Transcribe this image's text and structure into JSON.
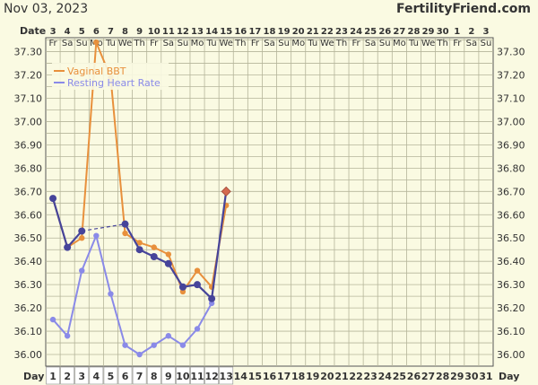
{
  "header": {
    "date": "Nov 03, 2023",
    "site": "FertilityFriend.com"
  },
  "labels": {
    "date_row": "Date",
    "day_row": "Day"
  },
  "colors": {
    "background": "#fafae2",
    "grid": "#b5b59a",
    "axis": "#555555",
    "bbt": "#e8903c",
    "rhr": "#8a8ae8",
    "combined": "#46449a",
    "flagged": "#d46a4f"
  },
  "chart_data": {
    "type": "line",
    "x_dates": [
      "3",
      "4",
      "5",
      "6",
      "7",
      "8",
      "9",
      "10",
      "11",
      "12",
      "13",
      "14",
      "15",
      "16",
      "17",
      "18",
      "19",
      "20",
      "21",
      "22",
      "23",
      "24",
      "25",
      "26",
      "27",
      "28",
      "29",
      "30",
      "1",
      "2",
      "3"
    ],
    "x_weekdays": [
      "Fr",
      "Sa",
      "Su",
      "Mo",
      "Tu",
      "We",
      "Th",
      "Fr",
      "Sa",
      "Su",
      "Mo",
      "Tu",
      "We",
      "Th",
      "Fr",
      "Sa",
      "Su",
      "Mo",
      "Tu",
      "We",
      "Th",
      "Fr",
      "Sa",
      "Su",
      "Mo",
      "Tu",
      "We",
      "Th",
      "Fr",
      "Sa",
      "Su"
    ],
    "x_days": [
      "1",
      "2",
      "3",
      "4",
      "5",
      "6",
      "7",
      "8",
      "9",
      "10",
      "11",
      "12",
      "13",
      "14",
      "15",
      "16",
      "17",
      "18",
      "19",
      "20",
      "21",
      "22",
      "23",
      "24",
      "25",
      "26",
      "27",
      "28",
      "29",
      "30",
      "31"
    ],
    "yticks": [
      "36.00",
      "36.10",
      "36.20",
      "36.30",
      "36.40",
      "36.50",
      "36.60",
      "36.70",
      "36.80",
      "36.90",
      "37.00",
      "37.10",
      "37.20",
      "37.30"
    ],
    "ylim": [
      35.95,
      37.36
    ],
    "legend_position": "top-left",
    "grid": true,
    "series": [
      {
        "name": "Vaginal BBT",
        "color": "#e8903c",
        "values": [
          36.67,
          36.46,
          36.5,
          37.34,
          37.19,
          36.52,
          36.48,
          36.46,
          36.43,
          36.27,
          36.36,
          36.29,
          36.64
        ],
        "show_in_legend": true
      },
      {
        "name": "Resting Heart Rate",
        "color": "#8a8ae8",
        "values": [
          36.15,
          36.08,
          36.36,
          36.51,
          36.26,
          36.04,
          36.0,
          36.04,
          36.08,
          36.04,
          36.11,
          36.22
        ],
        "show_in_legend": true
      },
      {
        "color": "#46449a",
        "points": [
          {
            "day": 1,
            "value": 36.67
          },
          {
            "day": 2,
            "value": 36.46
          },
          {
            "day": 3,
            "value": 36.53
          },
          {
            "day": 6,
            "value": 36.56
          },
          {
            "day": 7,
            "value": 36.45
          },
          {
            "day": 8,
            "value": 36.42
          },
          {
            "day": 9,
            "value": 36.39
          },
          {
            "day": 10,
            "value": 36.29
          },
          {
            "day": 11,
            "value": 36.3
          },
          {
            "day": 12,
            "value": 36.24
          },
          {
            "day": 13,
            "value": 36.7
          }
        ],
        "dashed_segments": [
          [
            3,
            6
          ]
        ],
        "show_in_legend": false
      }
    ]
  }
}
